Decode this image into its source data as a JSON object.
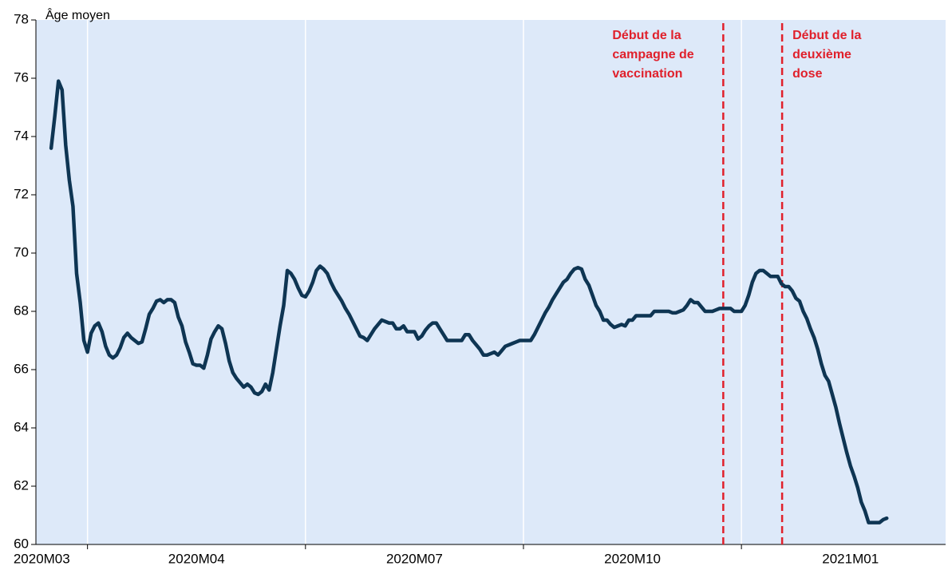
{
  "chart_data": {
    "type": "line",
    "y_label": "Âge moyen",
    "color": "#0e3553",
    "background": "#dde9f9",
    "annotation_color": "#e0202b",
    "ylim": [
      60,
      78
    ],
    "yticks": [
      60,
      62,
      64,
      66,
      68,
      70,
      72,
      74,
      76,
      78
    ],
    "xlim": [
      3.29,
      15.81
    ],
    "xticks": [
      {
        "value": 3.37,
        "label": "2020M03"
      },
      {
        "value": 5.5,
        "label": "2020M04"
      },
      {
        "value": 8.5,
        "label": "2020M07"
      },
      {
        "value": 11.5,
        "label": "2020M10"
      },
      {
        "value": 14.5,
        "label": "2021M01"
      }
    ],
    "xgrid": [
      4,
      7,
      10,
      13
    ],
    "annotations": [
      {
        "x": 12.75,
        "text": [
          "Début de la",
          "campagne de",
          "vaccination"
        ]
      },
      {
        "x": 13.56,
        "text": [
          "Début de la",
          "deuxième",
          "dose"
        ]
      }
    ],
    "x": [
      3.5,
      3.55,
      3.6,
      3.65,
      3.7,
      3.75,
      3.8,
      3.85,
      3.9,
      3.95,
      4,
      4.05,
      4.1,
      4.15,
      4.2,
      4.25,
      4.3,
      4.35,
      4.4,
      4.45,
      4.5,
      4.55,
      4.6,
      4.65,
      4.7,
      4.75,
      4.8,
      4.85,
      4.9,
      4.95,
      5,
      5.05,
      5.1,
      5.15,
      5.2,
      5.25,
      5.3,
      5.35,
      5.4,
      5.45,
      5.5,
      5.55,
      5.6,
      5.65,
      5.7,
      5.75,
      5.8,
      5.85,
      5.9,
      5.95,
      6,
      6.05,
      6.1,
      6.15,
      6.2,
      6.25,
      6.3,
      6.35,
      6.4,
      6.45,
      6.5,
      6.55,
      6.6,
      6.65,
      6.7,
      6.75,
      6.8,
      6.85,
      6.9,
      6.95,
      7,
      7.05,
      7.1,
      7.15,
      7.2,
      7.25,
      7.3,
      7.35,
      7.4,
      7.45,
      7.5,
      7.55,
      7.6,
      7.65,
      7.7,
      7.75,
      7.8,
      7.85,
      7.9,
      7.95,
      8,
      8.05,
      8.1,
      8.15,
      8.2,
      8.25,
      8.3,
      8.35,
      8.4,
      8.45,
      8.5,
      8.55,
      8.6,
      8.65,
      8.7,
      8.75,
      8.8,
      8.85,
      8.9,
      8.95,
      9,
      9.05,
      9.1,
      9.15,
      9.2,
      9.25,
      9.3,
      9.35,
      9.4,
      9.45,
      9.5,
      9.55,
      9.6,
      9.65,
      9.7,
      9.75,
      9.8,
      9.85,
      9.9,
      9.95,
      10,
      10.05,
      10.1,
      10.15,
      10.2,
      10.25,
      10.3,
      10.35,
      10.4,
      10.45,
      10.5,
      10.55,
      10.6,
      10.65,
      10.7,
      10.75,
      10.8,
      10.85,
      10.9,
      10.95,
      11,
      11.05,
      11.1,
      11.15,
      11.2,
      11.25,
      11.3,
      11.35,
      11.4,
      11.45,
      11.5,
      11.55,
      11.6,
      11.65,
      11.7,
      11.75,
      11.8,
      11.85,
      11.9,
      11.95,
      12,
      12.05,
      12.1,
      12.15,
      12.2,
      12.25,
      12.3,
      12.35,
      12.4,
      12.45,
      12.5,
      12.55,
      12.6,
      12.65,
      12.7,
      12.75,
      12.8,
      12.85,
      12.9,
      12.95,
      13,
      13.05,
      13.1,
      13.15,
      13.2,
      13.25,
      13.3,
      13.35,
      13.4,
      13.45,
      13.5,
      13.55,
      13.6,
      13.65,
      13.7,
      13.75,
      13.8,
      13.85,
      13.9,
      13.95,
      14,
      14.05,
      14.1,
      14.15,
      14.2,
      14.25,
      14.3,
      14.35,
      14.4,
      14.45,
      14.5,
      14.55,
      14.6,
      14.65,
      14.7,
      14.75,
      14.8,
      14.85,
      14.9,
      14.95,
      15
    ],
    "values": [
      73.6,
      74.7,
      75.9,
      75.6,
      73.7,
      72.5,
      71.6,
      69.3,
      68.3,
      67,
      66.6,
      67.25,
      67.5,
      67.6,
      67.3,
      66.8,
      66.5,
      66.4,
      66.5,
      66.75,
      67.1,
      67.25,
      67.1,
      67,
      66.9,
      66.95,
      67.4,
      67.9,
      68.1,
      68.35,
      68.4,
      68.3,
      68.4,
      68.4,
      68.3,
      67.8,
      67.5,
      66.95,
      66.6,
      66.2,
      66.15,
      66.15,
      66.05,
      66.5,
      67.05,
      67.3,
      67.5,
      67.4,
      66.9,
      66.3,
      65.9,
      65.7,
      65.55,
      65.4,
      65.5,
      65.4,
      65.2,
      65.15,
      65.25,
      65.5,
      65.3,
      65.9,
      66.7,
      67.5,
      68.2,
      69.4,
      69.3,
      69.1,
      68.8,
      68.55,
      68.5,
      68.7,
      69,
      69.4,
      69.55,
      69.45,
      69.3,
      69,
      68.75,
      68.55,
      68.35,
      68.1,
      67.9,
      67.65,
      67.4,
      67.15,
      67.1,
      67,
      67.2,
      67.4,
      67.55,
      67.7,
      67.65,
      67.6,
      67.6,
      67.4,
      67.4,
      67.5,
      67.3,
      67.3,
      67.3,
      67.05,
      67.15,
      67.35,
      67.5,
      67.6,
      67.6,
      67.4,
      67.2,
      67,
      67,
      67,
      67,
      67,
      67.2,
      67.2,
      67,
      66.85,
      66.7,
      66.5,
      66.5,
      66.55,
      66.6,
      66.5,
      66.65,
      66.8,
      66.85,
      66.9,
      66.95,
      67,
      67,
      67,
      67,
      67.2,
      67.45,
      67.7,
      67.95,
      68.15,
      68.4,
      68.6,
      68.8,
      69,
      69.1,
      69.3,
      69.45,
      69.5,
      69.45,
      69.1,
      68.9,
      68.55,
      68.2,
      68,
      67.7,
      67.7,
      67.55,
      67.45,
      67.5,
      67.55,
      67.5,
      67.7,
      67.7,
      67.85,
      67.85,
      67.85,
      67.85,
      67.85,
      68,
      68,
      68,
      68,
      68,
      67.95,
      67.95,
      68,
      68.05,
      68.2,
      68.4,
      68.3,
      68.3,
      68.15,
      68,
      68,
      68,
      68.05,
      68.1,
      68.1,
      68.1,
      68.1,
      68,
      68,
      68,
      68.2,
      68.55,
      69,
      69.3,
      69.4,
      69.4,
      69.3,
      69.2,
      69.2,
      69.2,
      68.95,
      68.85,
      68.85,
      68.7,
      68.45,
      68.35,
      68,
      67.75,
      67.4,
      67.1,
      66.7,
      66.2,
      65.8,
      65.6,
      65.15,
      64.7,
      64.15,
      63.65,
      63.15,
      62.7,
      62.35,
      61.95,
      61.45,
      61.15,
      60.75,
      60.75,
      60.75,
      60.75,
      60.85,
      60.9
    ]
  }
}
